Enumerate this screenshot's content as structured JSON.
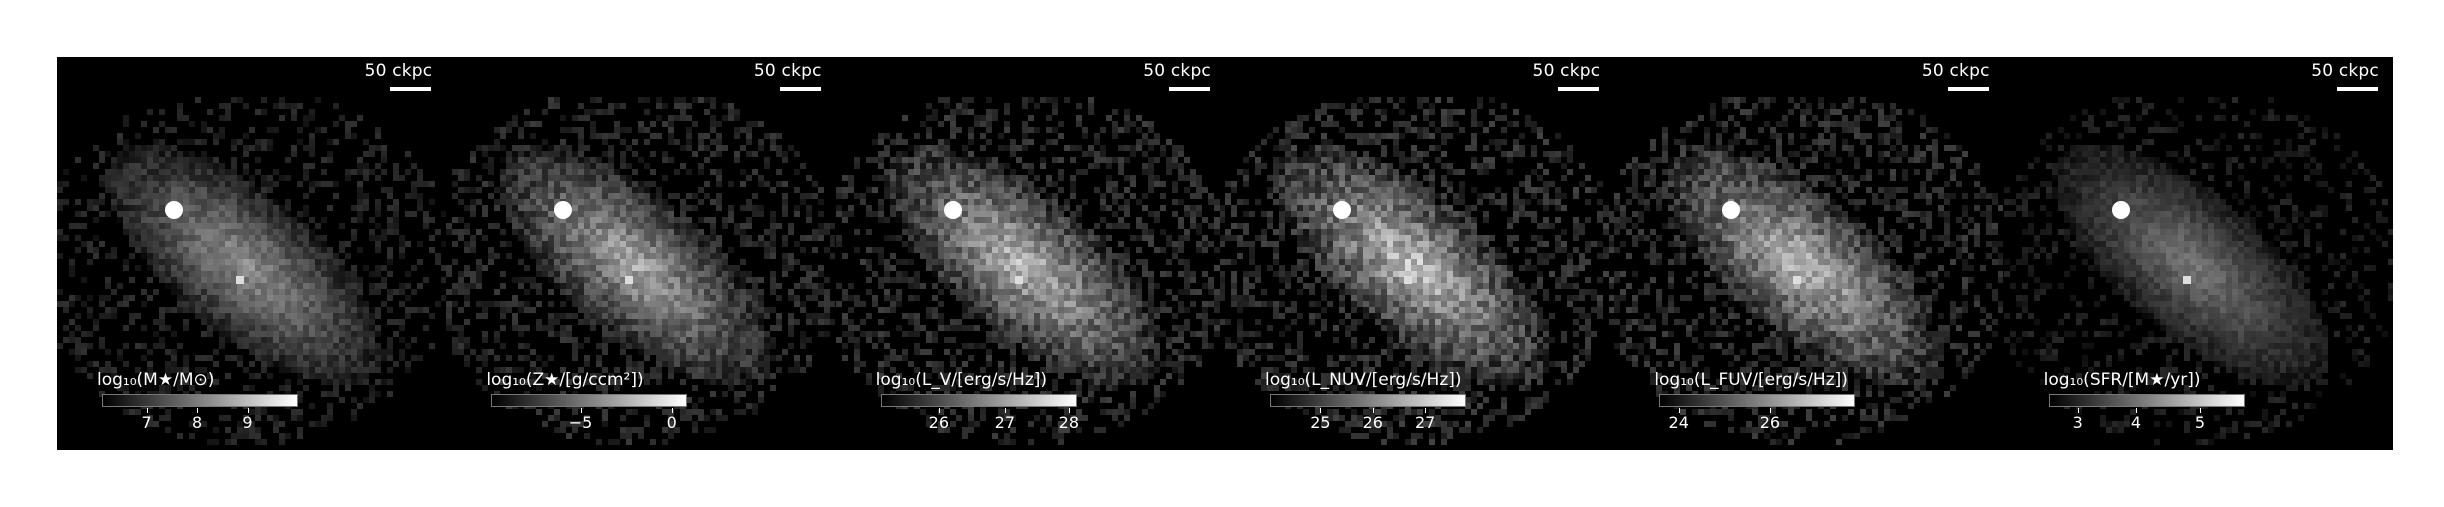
{
  "panels": [
    {
      "scale_label": "50 ckpc",
      "cbar_title": "log₁₀(M★/M⊙)",
      "ticks": [
        "7",
        "8",
        "9"
      ],
      "tick_fracs": [
        0.23,
        0.49,
        0.75
      ],
      "brightness": 0.85
    },
    {
      "scale_label": "50 ckpc",
      "cbar_title": "log₁₀(Z★/[g/ccm²])",
      "ticks": [
        "−5",
        "0"
      ],
      "tick_fracs": [
        0.46,
        0.93
      ],
      "brightness": 1.0
    },
    {
      "scale_label": "50 ckpc",
      "cbar_title": "log₁₀(L_V/[erg/s/Hz])",
      "ticks": [
        "26",
        "27",
        "28"
      ],
      "tick_fracs": [
        0.3,
        0.64,
        0.97
      ],
      "brightness": 1.1
    },
    {
      "scale_label": "50 ckpc",
      "cbar_title": "log₁₀(L_NUV/[erg/s/Hz])",
      "ticks": [
        "25",
        "26",
        "27"
      ],
      "tick_fracs": [
        0.26,
        0.53,
        0.8
      ],
      "brightness": 1.15
    },
    {
      "scale_label": "50 ckpc",
      "cbar_title": "log₁₀(L_FUV/[erg/s/Hz])",
      "ticks": [
        "24",
        "26"
      ],
      "tick_fracs": [
        0.1,
        0.57
      ],
      "brightness": 1.1
    },
    {
      "scale_label": "50 ckpc",
      "cbar_title": "log₁₀(SFR/[M★/yr])",
      "ticks": [
        "3",
        "4",
        "5"
      ],
      "tick_fracs": [
        0.15,
        0.45,
        0.78
      ],
      "brightness": 0.7
    }
  ]
}
